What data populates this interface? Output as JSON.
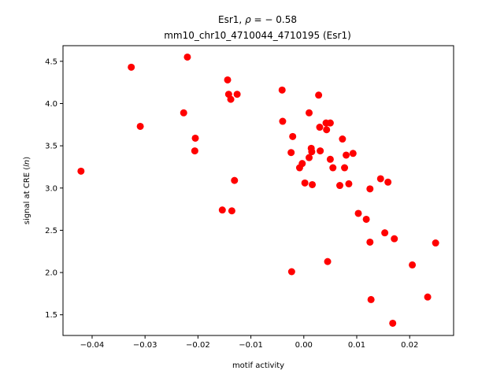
{
  "chart_data": {
    "type": "scatter",
    "title_gene": "Esr1",
    "title_rho_symbol": "ρ",
    "title_rho_value": "− 0.58",
    "subtitle": "mm10_chr10_4710044_4710195 (Esr1)",
    "xlabel": "motif activity",
    "ylabel_prefix": "signal at CRE (",
    "ylabel_italic": "ln",
    "ylabel_suffix": ")",
    "xlim": [
      -0.0455,
      0.0283
    ],
    "ylim": [
      1.255,
      4.685
    ],
    "xticks": [
      -0.04,
      -0.03,
      -0.02,
      -0.01,
      0.0,
      0.01,
      0.02
    ],
    "xtick_labels": [
      "−0.04",
      "−0.03",
      "−0.02",
      "−0.01",
      "0.00",
      "0.01",
      "0.02"
    ],
    "yticks": [
      1.5,
      2.0,
      2.5,
      3.0,
      3.5,
      4.0,
      4.5
    ],
    "ytick_labels": [
      "1.5",
      "2.0",
      "2.5",
      "3.0",
      "3.5",
      "4.0",
      "4.5"
    ],
    "marker_color": "#ff0000",
    "grid": false,
    "points": [
      {
        "x": -0.0421,
        "y": 3.2
      },
      {
        "x": -0.0326,
        "y": 4.43
      },
      {
        "x": -0.0309,
        "y": 3.73
      },
      {
        "x": -0.022,
        "y": 4.55
      },
      {
        "x": -0.0227,
        "y": 3.89
      },
      {
        "x": -0.0205,
        "y": 3.59
      },
      {
        "x": -0.0206,
        "y": 3.44
      },
      {
        "x": -0.0154,
        "y": 2.74
      },
      {
        "x": -0.0144,
        "y": 4.28
      },
      {
        "x": -0.0142,
        "y": 4.11
      },
      {
        "x": -0.0138,
        "y": 4.05
      },
      {
        "x": -0.0136,
        "y": 2.73
      },
      {
        "x": -0.0131,
        "y": 3.09
      },
      {
        "x": -0.0126,
        "y": 4.11
      },
      {
        "x": -0.0041,
        "y": 4.16
      },
      {
        "x": -0.004,
        "y": 3.79
      },
      {
        "x": -0.0024,
        "y": 3.42
      },
      {
        "x": -0.0021,
        "y": 3.61
      },
      {
        "x": -0.0023,
        "y": 2.01
      },
      {
        "x": -0.0008,
        "y": 3.24
      },
      {
        "x": -0.0003,
        "y": 3.29
      },
      {
        "x": 0.0002,
        "y": 3.06
      },
      {
        "x": 0.001,
        "y": 3.89
      },
      {
        "x": 0.001,
        "y": 3.36
      },
      {
        "x": 0.0014,
        "y": 3.47
      },
      {
        "x": 0.0015,
        "y": 3.43
      },
      {
        "x": 0.0016,
        "y": 3.04
      },
      {
        "x": 0.0028,
        "y": 4.1
      },
      {
        "x": 0.003,
        "y": 3.72
      },
      {
        "x": 0.0031,
        "y": 3.44
      },
      {
        "x": 0.0042,
        "y": 3.77
      },
      {
        "x": 0.0043,
        "y": 3.69
      },
      {
        "x": 0.0045,
        "y": 2.13
      },
      {
        "x": 0.005,
        "y": 3.77
      },
      {
        "x": 0.005,
        "y": 3.34
      },
      {
        "x": 0.0055,
        "y": 3.24
      },
      {
        "x": 0.0068,
        "y": 3.03
      },
      {
        "x": 0.0073,
        "y": 3.58
      },
      {
        "x": 0.0077,
        "y": 3.24
      },
      {
        "x": 0.008,
        "y": 3.39
      },
      {
        "x": 0.0085,
        "y": 3.05
      },
      {
        "x": 0.0093,
        "y": 3.41
      },
      {
        "x": 0.0103,
        "y": 2.7
      },
      {
        "x": 0.0118,
        "y": 2.63
      },
      {
        "x": 0.0125,
        "y": 2.99
      },
      {
        "x": 0.0125,
        "y": 2.36
      },
      {
        "x": 0.0127,
        "y": 1.68
      },
      {
        "x": 0.0145,
        "y": 3.11
      },
      {
        "x": 0.0153,
        "y": 2.47
      },
      {
        "x": 0.0159,
        "y": 3.07
      },
      {
        "x": 0.0168,
        "y": 1.4
      },
      {
        "x": 0.0171,
        "y": 2.4
      },
      {
        "x": 0.0205,
        "y": 2.09
      },
      {
        "x": 0.0234,
        "y": 1.71
      },
      {
        "x": 0.0249,
        "y": 2.35
      }
    ]
  }
}
